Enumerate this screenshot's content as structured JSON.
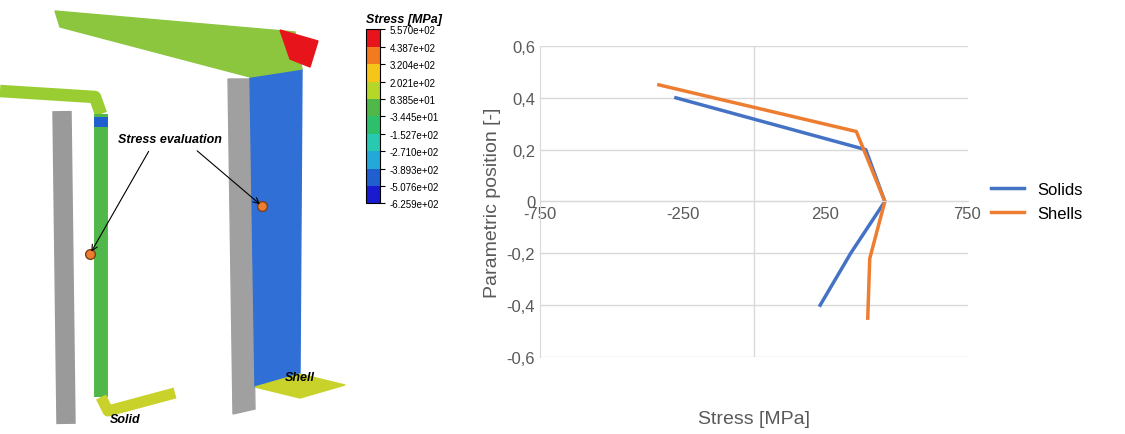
{
  "chart_data": {
    "type": "line",
    "x_label": "Stress [MPa]",
    "y_label": "Parametric position [-]",
    "series": [
      {
        "name": "Solids",
        "color": "#4472c4",
        "x": [
          -273,
          393,
          460,
          340,
          233
        ],
        "y": [
          0.4,
          0.2,
          0,
          -0.2,
          -0.4
        ]
      },
      {
        "name": "Shells",
        "color": "#ed7d31",
        "x": [
          -333,
          360,
          460,
          407,
          400
        ],
        "y": [
          0.45,
          0.27,
          0,
          -0.22,
          -0.45
        ]
      }
    ],
    "xlim": [
      -750,
      750
    ],
    "xticks": [
      -750,
      -250,
      250,
      750
    ],
    "ylim": [
      -0.6,
      0.6
    ],
    "yticks": [
      {
        "value": -0.6,
        "label": "-0,6"
      },
      {
        "value": -0.4,
        "label": "-0,4"
      },
      {
        "value": -0.2,
        "label": "-0,2"
      },
      {
        "value": 0,
        "label": "0"
      },
      {
        "value": 0.2,
        "label": "0,2"
      },
      {
        "value": 0.4,
        "label": "0,4"
      },
      {
        "value": 0.6,
        "label": "0,6"
      }
    ],
    "grid": true,
    "legend": "right"
  },
  "illustration": {
    "annotations": {
      "evaluation": "Stress evaluation",
      "solid": "Solid",
      "shell": "Shell"
    },
    "colorbar": {
      "title": "Stress [MPa]",
      "lim": [
        -625.9,
        557
      ],
      "ticks": [
        {
          "value": -625.9,
          "label": "-6.259e+02"
        },
        {
          "value": -507.6,
          "label": "-5.076e+02"
        },
        {
          "value": -389.3,
          "label": "-3.893e+02"
        },
        {
          "value": -271.0,
          "label": "-2.710e+02"
        },
        {
          "value": -152.7,
          "label": "-1.527e+02"
        },
        {
          "value": -34.45,
          "label": "-3.445e+01"
        },
        {
          "value": 83.85,
          "label": "8.385e+01"
        },
        {
          "value": 202.1,
          "label": "2.021e+02"
        },
        {
          "value": 320.4,
          "label": "3.204e+02"
        },
        {
          "value": 438.7,
          "label": "4.387e+02"
        },
        {
          "value": 557.0,
          "label": "5.570e+02"
        }
      ],
      "colors": [
        "#1a1ad1",
        "#1f5fcf",
        "#24a8d8",
        "#27c9b0",
        "#2dbf6c",
        "#4fb848",
        "#b6d62a",
        "#f5c518",
        "#f47a20",
        "#e8141c"
      ]
    }
  }
}
